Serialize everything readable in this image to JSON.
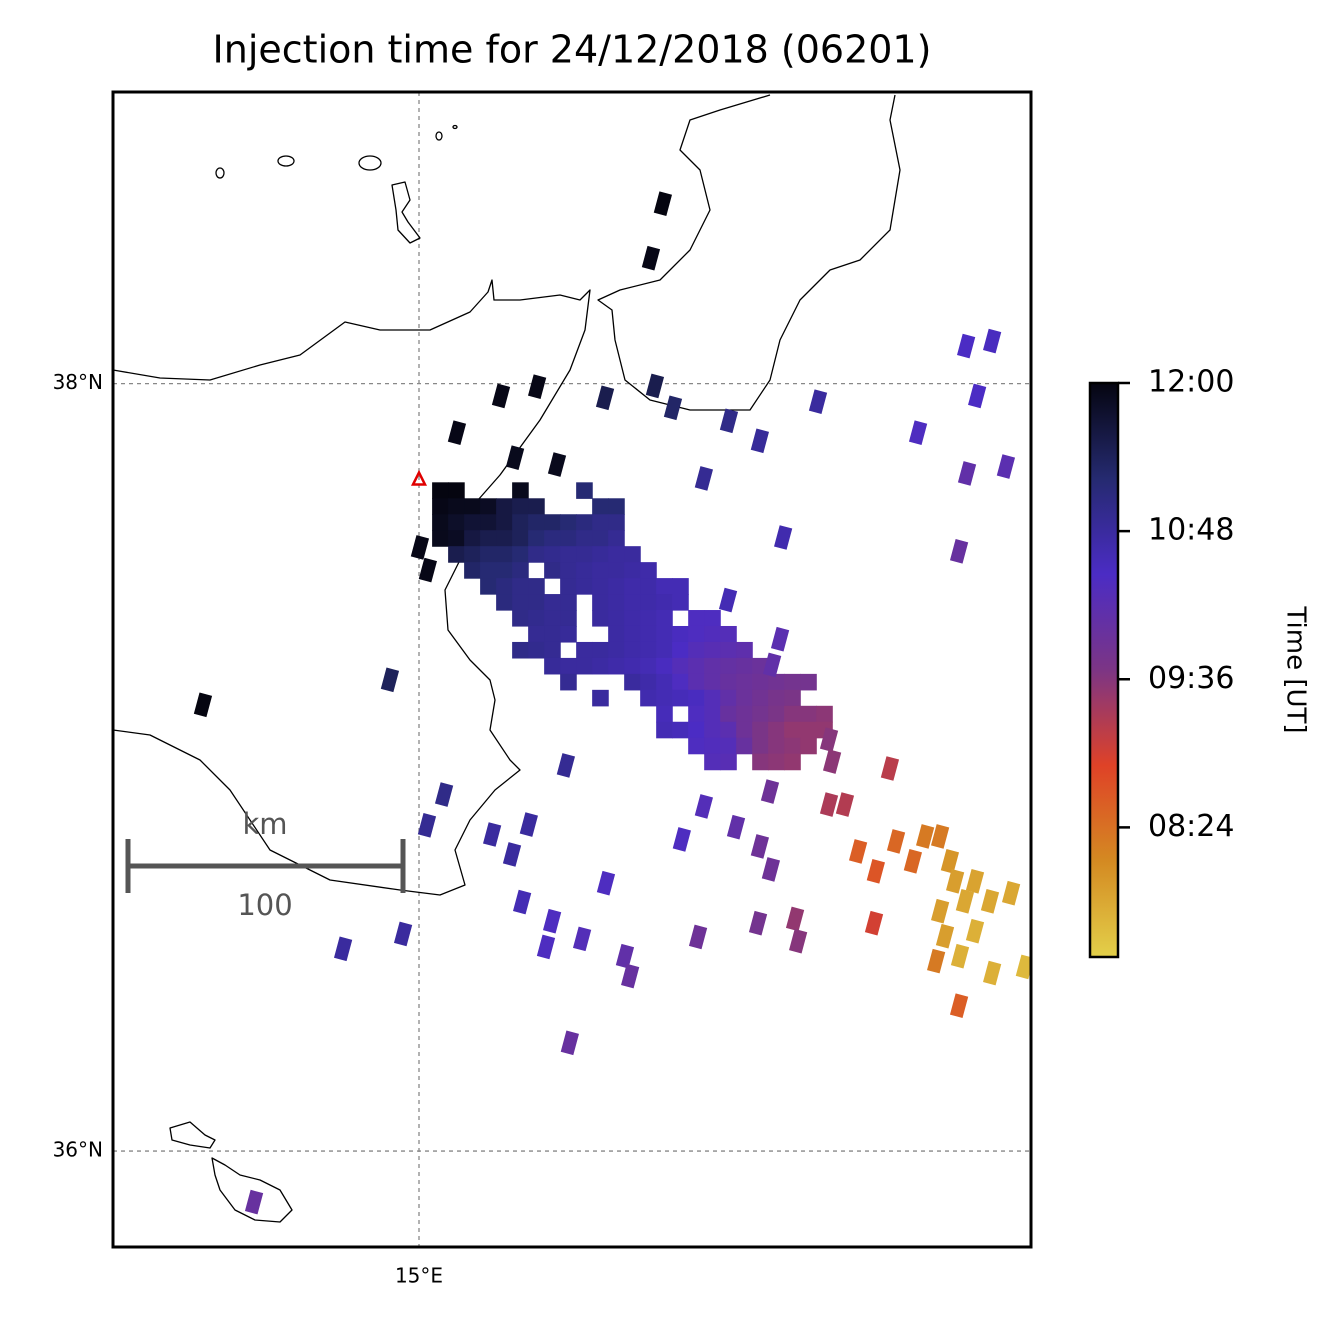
{
  "chart_data": {
    "type": "map",
    "title": "Injection time for 24/12/2018 (06201)",
    "xlim": [
      14.0,
      17.0
    ],
    "ylim": [
      35.75,
      38.76
    ],
    "xticks": [
      {
        "value": 15,
        "label": "15°E"
      }
    ],
    "yticks": [
      {
        "value": 38,
        "label": "38°N"
      },
      {
        "value": 36,
        "label": "36°N"
      }
    ],
    "grid": true,
    "colorbar": {
      "label": "Time [UT]",
      "clim": [
        7.35,
        12.0
      ],
      "ticks": [
        {
          "value": 12.0,
          "label": "12:00"
        },
        {
          "value": 10.8,
          "label": "10:48"
        },
        {
          "value": 9.6,
          "label": "09:36"
        },
        {
          "value": 8.4,
          "label": "08:24"
        }
      ],
      "colormap": [
        "#e3d04a",
        "#d48a22",
        "#df4227",
        "#7c3585",
        "#4b2cc4",
        "#252a70",
        "#050510"
      ]
    },
    "source": {
      "lon": 15.0,
      "lat": 37.75,
      "color": "#e00000"
    },
    "scale_bar": {
      "unit": "km",
      "length": 100
    },
    "grid_cells": {
      "lon0": 15.069,
      "dlon": 0.0523,
      "lat0": 37.722,
      "dlat": 0.0416,
      "rows": [
        {
          "col": 0,
          "values": [
            12.0,
            12.0,
            null,
            null,
            null,
            11.9,
            null,
            null,
            null,
            11.2
          ]
        },
        {
          "col": 0,
          "values": [
            11.95,
            11.9,
            11.9,
            11.85,
            11.6,
            11.5,
            11.5,
            null,
            null,
            null,
            11.2,
            11.2
          ]
        },
        {
          "col": 0,
          "values": [
            11.9,
            11.8,
            11.7,
            11.7,
            11.6,
            11.4,
            11.3,
            11.3,
            11.2,
            11.1,
            11.0,
            11.0
          ]
        },
        {
          "col": 0,
          "values": [
            11.9,
            11.85,
            11.6,
            11.5,
            11.5,
            11.4,
            11.2,
            11.1,
            11.1,
            11.0,
            11.0,
            10.9
          ]
        },
        {
          "col": 1,
          "values": [
            11.5,
            11.4,
            11.3,
            11.3,
            11.2,
            11.0,
            10.95,
            10.9,
            10.9,
            10.85,
            10.8,
            10.8
          ]
        },
        {
          "col": 2,
          "values": [
            11.3,
            11.2,
            11.2,
            11.1,
            null,
            11.0,
            10.9,
            10.85,
            10.8,
            10.8,
            10.75,
            10.7
          ]
        },
        {
          "col": 3,
          "values": [
            11.2,
            11.1,
            11.0,
            11.0,
            null,
            10.9,
            10.85,
            10.8,
            10.75,
            10.7,
            10.7,
            10.6,
            10.6
          ]
        },
        {
          "col": 4,
          "values": [
            11.1,
            11.0,
            11.0,
            10.9,
            10.9,
            null,
            10.8,
            10.75,
            10.7,
            10.7,
            10.65,
            10.6
          ]
        },
        {
          "col": 5,
          "values": [
            11.0,
            10.95,
            10.9,
            10.9,
            null,
            10.8,
            10.75,
            10.7,
            10.65,
            10.6,
            null,
            10.4,
            10.4
          ]
        },
        {
          "col": 6,
          "values": [
            10.9,
            10.9,
            10.85,
            null,
            null,
            10.75,
            10.7,
            10.65,
            10.6,
            10.5,
            10.4,
            10.35,
            10.3
          ]
        },
        {
          "col": 5,
          "values": [
            11.0,
            10.95,
            10.9,
            null,
            10.8,
            10.8,
            10.75,
            10.7,
            10.65,
            10.6,
            10.45,
            10.3,
            10.25,
            10.2,
            10.15
          ]
        },
        {
          "col": 7,
          "values": [
            10.85,
            10.8,
            10.8,
            10.75,
            10.7,
            10.65,
            10.6,
            10.5,
            10.3,
            10.2,
            10.1,
            10.05,
            10.0,
            9.95
          ]
        },
        {
          "col": 8,
          "values": [
            10.9,
            null,
            null,
            null,
            10.8,
            10.7,
            10.6,
            10.4,
            10.2,
            10.1,
            10.0,
            9.95,
            9.9,
            9.85,
            9.8,
            9.8
          ]
        },
        {
          "col": 10,
          "values": [
            10.8,
            null,
            null,
            10.65,
            10.6,
            10.55,
            10.5,
            10.3,
            10.1,
            9.95,
            9.85,
            9.75,
            9.7
          ]
        },
        {
          "col": 14,
          "values": [
            10.55,
            null,
            10.4,
            10.3,
            10.0,
            9.9,
            9.8,
            9.7,
            9.6,
            9.6,
            9.55
          ]
        },
        {
          "col": 14,
          "values": [
            10.6,
            10.55,
            10.45,
            10.3,
            10.2,
            9.9,
            9.7,
            9.6,
            9.5,
            9.5,
            9.5
          ]
        },
        {
          "col": 16,
          "values": [
            10.4,
            10.35,
            10.3,
            10.0,
            9.7,
            9.6,
            9.55,
            9.5
          ]
        },
        {
          "col": 17,
          "values": [
            10.3,
            10.25,
            null,
            9.6,
            9.55,
            9.5
          ]
        }
      ]
    },
    "cells": [
      [
        15.797,
        38.469,
        12.0
      ],
      [
        15.758,
        38.327,
        11.95
      ],
      [
        16.788,
        38.098,
        10.45
      ],
      [
        16.873,
        38.111,
        10.5
      ],
      [
        15.268,
        37.968,
        11.95
      ],
      [
        15.386,
        37.992,
        11.95
      ],
      [
        15.608,
        37.963,
        11.5
      ],
      [
        15.771,
        37.994,
        11.5
      ],
      [
        15.83,
        37.937,
        11.3
      ],
      [
        16.013,
        37.903,
        11.0
      ],
      [
        16.304,
        37.953,
        10.8
      ],
      [
        16.824,
        37.968,
        10.45
      ],
      [
        16.631,
        37.872,
        10.4
      ],
      [
        16.114,
        37.851,
        10.85
      ],
      [
        15.124,
        37.872,
        11.95
      ],
      [
        15.314,
        37.807,
        11.9
      ],
      [
        15.451,
        37.789,
        11.9
      ],
      [
        15.003,
        37.573,
        11.95
      ],
      [
        15.029,
        37.514,
        11.95
      ],
      [
        14.294,
        37.163,
        12.0
      ],
      [
        15.931,
        37.753,
        10.9
      ],
      [
        16.791,
        37.766,
        10.1
      ],
      [
        16.918,
        37.784,
        10.2
      ],
      [
        16.19,
        37.599,
        10.65
      ],
      [
        16.765,
        37.563,
        10.0
      ],
      [
        14.905,
        37.228,
        11.4
      ],
      [
        16.01,
        37.436,
        10.6
      ],
      [
        16.18,
        37.334,
        10.2
      ],
      [
        16.154,
        37.267,
        10.1
      ],
      [
        16.34,
        37.072,
        9.6
      ],
      [
        16.35,
        37.015,
        9.55
      ],
      [
        16.539,
        36.997,
        9.2
      ],
      [
        15.48,
        37.005,
        10.9
      ],
      [
        15.082,
        36.929,
        11.0
      ],
      [
        15.026,
        36.849,
        10.9
      ],
      [
        15.239,
        36.825,
        10.8
      ],
      [
        15.304,
        36.773,
        10.8
      ],
      [
        15.359,
        36.851,
        10.8
      ],
      [
        15.859,
        36.812,
        10.4
      ],
      [
        15.931,
        36.898,
        10.3
      ],
      [
        16.036,
        36.844,
        10.1
      ],
      [
        16.114,
        36.794,
        9.9
      ],
      [
        16.15,
        36.734,
        9.9
      ],
      [
        16.34,
        36.903,
        9.3
      ],
      [
        16.392,
        36.903,
        9.25
      ],
      [
        16.147,
        36.937,
        9.9
      ],
      [
        15.611,
        36.698,
        10.4
      ],
      [
        15.337,
        36.649,
        10.6
      ],
      [
        15.435,
        36.599,
        10.4
      ],
      [
        15.415,
        36.532,
        10.4
      ],
      [
        15.533,
        36.553,
        10.3
      ],
      [
        15.673,
        36.508,
        10.1
      ],
      [
        15.69,
        36.456,
        10.0
      ],
      [
        15.912,
        36.558,
        9.9
      ],
      [
        16.108,
        36.594,
        9.8
      ],
      [
        16.229,
        36.605,
        9.5
      ],
      [
        16.239,
        36.547,
        9.6
      ],
      [
        16.487,
        36.594,
        9.0
      ],
      [
        14.752,
        36.527,
        10.8
      ],
      [
        14.948,
        36.566,
        10.8
      ],
      [
        15.493,
        36.282,
        10.0
      ],
      [
        14.461,
        35.867,
        10.0
      ],
      [
        16.765,
        36.379,
        8.6
      ],
      [
        16.69,
        36.495,
        8.3
      ],
      [
        16.873,
        36.464,
        7.7
      ],
      [
        16.98,
        36.48,
        7.6
      ],
      [
        16.935,
        36.672,
        7.8
      ],
      [
        16.435,
        36.781,
        8.6
      ],
      [
        16.493,
        36.729,
        8.7
      ],
      [
        16.559,
        36.807,
        8.5
      ],
      [
        16.614,
        36.755,
        8.5
      ],
      [
        16.654,
        36.82,
        8.3
      ],
      [
        16.703,
        36.82,
        8.3
      ],
      [
        16.735,
        36.755,
        8.0
      ],
      [
        16.752,
        36.703,
        7.9
      ],
      [
        16.817,
        36.703,
        7.85
      ],
      [
        16.784,
        36.651,
        7.8
      ],
      [
        16.866,
        36.651,
        7.8
      ],
      [
        16.703,
        36.625,
        7.9
      ],
      [
        16.719,
        36.56,
        7.9
      ],
      [
        16.817,
        36.573,
        7.7
      ],
      [
        16.768,
        36.508,
        7.7
      ]
    ]
  }
}
